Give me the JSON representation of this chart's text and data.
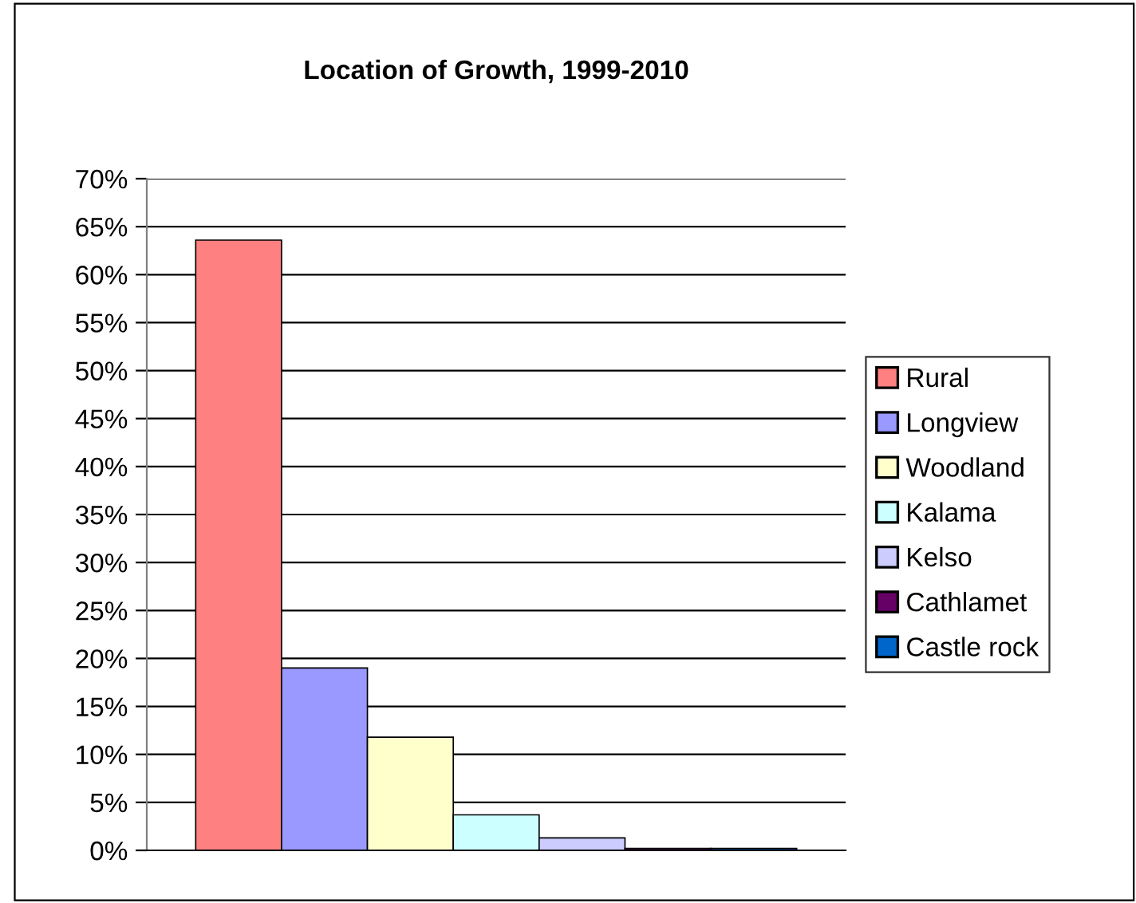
{
  "chart_data": {
    "type": "bar",
    "title": "Location of Growth, 1999-2010",
    "categories": [
      null
    ],
    "series": [
      {
        "name": "Rural",
        "color": "#ff8080",
        "values": [
          63.6
        ]
      },
      {
        "name": "Longview",
        "color": "#9999ff",
        "values": [
          19.0
        ]
      },
      {
        "name": "Woodland",
        "color": "#ffffcc",
        "values": [
          11.8
        ]
      },
      {
        "name": "Kalama",
        "color": "#ccffff",
        "values": [
          3.7
        ]
      },
      {
        "name": "Kelso",
        "color": "#ccccff",
        "values": [
          1.3
        ]
      },
      {
        "name": "Cathlamet",
        "color": "#660066",
        "values": [
          0.2
        ]
      },
      {
        "name": "Castle rock",
        "color": "#0066cc",
        "values": [
          0.2
        ]
      }
    ],
    "ylim": [
      0,
      70
    ],
    "yticks": [
      {
        "value": 0,
        "label": "0%"
      },
      {
        "value": 5,
        "label": "5%"
      },
      {
        "value": 10,
        "label": "10%"
      },
      {
        "value": 15,
        "label": "15%"
      },
      {
        "value": 20,
        "label": "20%"
      },
      {
        "value": 25,
        "label": "25%"
      },
      {
        "value": 30,
        "label": "30%"
      },
      {
        "value": 35,
        "label": "35%"
      },
      {
        "value": 40,
        "label": "40%"
      },
      {
        "value": 45,
        "label": "45%"
      },
      {
        "value": 50,
        "label": "50%"
      },
      {
        "value": 55,
        "label": "55%"
      },
      {
        "value": 60,
        "label": "60%"
      },
      {
        "value": 65,
        "label": "65%"
      },
      {
        "value": 70,
        "label": "70%"
      }
    ],
    "grid": "y",
    "legend": "right",
    "tick_labels": "y"
  }
}
